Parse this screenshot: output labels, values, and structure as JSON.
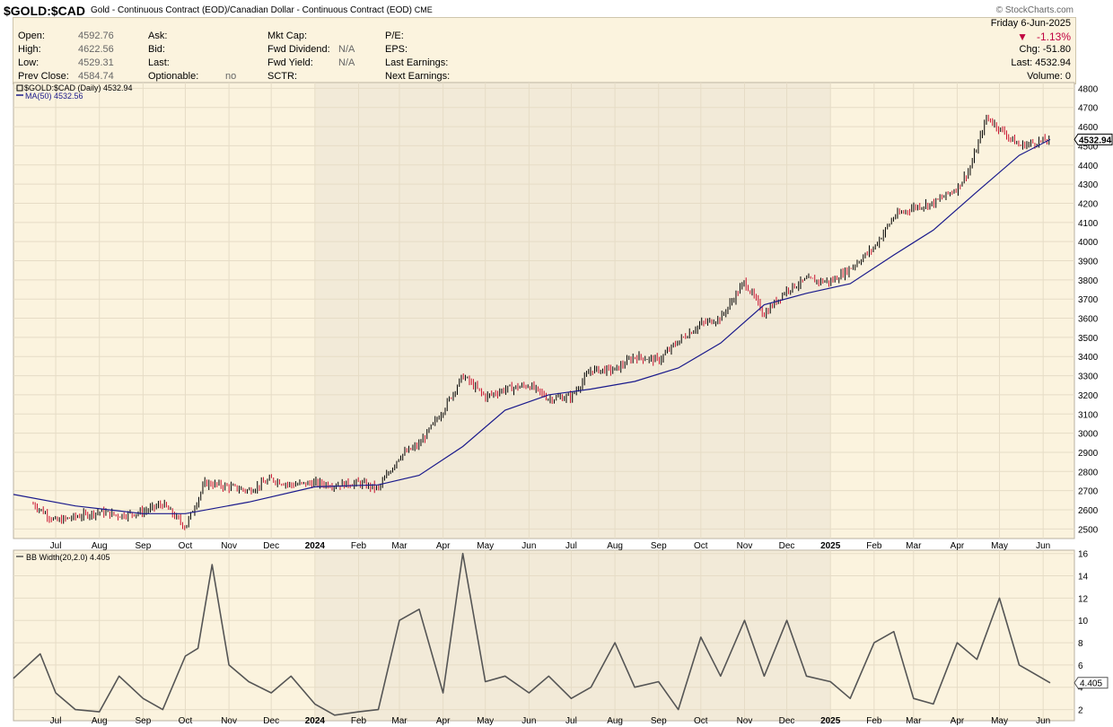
{
  "header": {
    "symbol": "$GOLD:$CAD",
    "description": "Gold - Continuous Contract (EOD)/Canadian Dollar - Continuous Contract (EOD)",
    "exchange": "CME",
    "watermark": "© StockCharts.com"
  },
  "quote": {
    "open_label": "Open:",
    "open_value": "4592.76",
    "high_label": "High:",
    "high_value": "4622.56",
    "low_label": "Low:",
    "low_value": "4529.31",
    "prev_label": "Prev Close:",
    "prev_value": "4584.74",
    "ask_label": "Ask:",
    "bid_label": "Bid:",
    "last_label": "Last:",
    "optionable_label": "Optionable:",
    "optionable_value": "no",
    "mktcap_label": "Mkt Cap:",
    "fwddiv_label": "Fwd Dividend:",
    "fwddiv_value": "N/A",
    "fwdyield_label": "Fwd Yield:",
    "fwdyield_value": "N/A",
    "sctr_label": "SCTR:",
    "pe_label": "P/E:",
    "eps_label": "EPS:",
    "lastearn_label": "Last Earnings:",
    "nextearn_label": "Next Earnings:",
    "date": "Friday  6-Jun-2025",
    "pct_change": "-1.13%",
    "chg": "Chg:  -51.80",
    "last": "Last: 4532.94",
    "volume": "Volume:     0",
    "down_color": "#c00040"
  },
  "chart_data": [
    {
      "type": "candlestick",
      "legend_price": "$GOLD:$CAD (Daily) 4532.94",
      "legend_ma": "MA(50) 4532.56",
      "last_value_label": "4532.94",
      "ylim": [
        2450,
        4830
      ],
      "y_ticks": [
        "2500",
        "2600",
        "2700",
        "2800",
        "2900",
        "3000",
        "3100",
        "3200",
        "3300",
        "3400",
        "3500",
        "3600",
        "3700",
        "3800",
        "3900",
        "4000",
        "4100",
        "4200",
        "4300",
        "4400",
        "4500",
        "4600",
        "4700",
        "4800"
      ],
      "x_labels": [
        "Jul",
        "Aug",
        "Sep",
        "Oct",
        "Nov",
        "Dec",
        "2024",
        "Feb",
        "Mar",
        "Apr",
        "May",
        "Jun",
        "Jul",
        "Aug",
        "Sep",
        "Oct",
        "Nov",
        "Dec",
        "2025",
        "Feb",
        "Mar",
        "Apr",
        "May",
        "Jun"
      ],
      "x_bold": [
        "2024",
        "2025"
      ],
      "price_x": [
        "2023-06-15",
        "2023-07-01",
        "2023-08-01",
        "2023-08-15",
        "2023-09-01",
        "2023-09-15",
        "2023-10-01",
        "2023-10-15",
        "2023-11-01",
        "2023-11-15",
        "2023-12-01",
        "2023-12-15",
        "2024-01-01",
        "2024-01-15",
        "2024-02-01",
        "2024-02-15",
        "2024-03-01",
        "2024-03-15",
        "2024-04-01",
        "2024-04-15",
        "2024-05-01",
        "2024-05-15",
        "2024-06-01",
        "2024-06-15",
        "2024-07-01",
        "2024-07-15",
        "2024-08-01",
        "2024-08-15",
        "2024-09-01",
        "2024-09-15",
        "2024-10-01",
        "2024-10-15",
        "2024-11-01",
        "2024-11-15",
        "2024-12-01",
        "2024-12-15",
        "2025-01-01",
        "2025-01-15",
        "2025-02-01",
        "2025-02-15",
        "2025-03-01",
        "2025-03-15",
        "2025-04-01",
        "2025-04-10",
        "2025-04-22",
        "2025-05-01",
        "2025-05-15",
        "2025-06-06"
      ],
      "price": [
        2630,
        2540,
        2590,
        2570,
        2590,
        2630,
        2510,
        2740,
        2720,
        2700,
        2760,
        2730,
        2740,
        2730,
        2740,
        2710,
        2880,
        2940,
        3120,
        3300,
        3190,
        3230,
        3250,
        3180,
        3190,
        3330,
        3330,
        3400,
        3380,
        3480,
        3570,
        3600,
        3790,
        3620,
        3750,
        3800,
        3790,
        3860,
        3970,
        4130,
        4180,
        4200,
        4280,
        4380,
        4650,
        4590,
        4500,
        4533
      ],
      "ma_x": [
        "2023-06-01",
        "2023-07-15",
        "2023-09-01",
        "2023-10-01",
        "2023-11-15",
        "2024-01-01",
        "2024-02-15",
        "2024-03-15",
        "2024-04-15",
        "2024-05-15",
        "2024-06-15",
        "2024-07-15",
        "2024-08-15",
        "2024-09-15",
        "2024-10-15",
        "2024-11-15",
        "2024-12-15",
        "2025-01-15",
        "2025-02-15",
        "2025-03-15",
        "2025-04-15",
        "2025-05-15",
        "2025-06-06"
      ],
      "ma": [
        2680,
        2620,
        2580,
        2580,
        2640,
        2720,
        2730,
        2780,
        2930,
        3120,
        3200,
        3230,
        3270,
        3340,
        3470,
        3670,
        3730,
        3780,
        3930,
        4060,
        4260,
        4450,
        4533
      ]
    },
    {
      "type": "line",
      "legend": "BB Width(20,2.0) 4.405",
      "last_value_label": "4.405",
      "ylim": [
        1,
        16.3
      ],
      "y_ticks": [
        "2",
        "4",
        "6",
        "8",
        "10",
        "12",
        "14",
        "16"
      ],
      "x": [
        "2023-06-01",
        "2023-06-20",
        "2023-07-01",
        "2023-07-15",
        "2023-08-01",
        "2023-08-15",
        "2023-09-01",
        "2023-09-15",
        "2023-10-01",
        "2023-10-10",
        "2023-10-20",
        "2023-11-01",
        "2023-11-15",
        "2023-12-01",
        "2023-12-15",
        "2024-01-01",
        "2024-01-15",
        "2024-02-01",
        "2024-02-15",
        "2024-03-01",
        "2024-03-15",
        "2024-04-01",
        "2024-04-15",
        "2024-05-01",
        "2024-05-15",
        "2024-06-01",
        "2024-06-15",
        "2024-07-01",
        "2024-07-15",
        "2024-08-01",
        "2024-08-15",
        "2024-09-01",
        "2024-09-15",
        "2024-10-01",
        "2024-10-15",
        "2024-11-01",
        "2024-11-15",
        "2024-12-01",
        "2024-12-15",
        "2025-01-01",
        "2025-01-15",
        "2025-02-01",
        "2025-02-15",
        "2025-03-01",
        "2025-03-15",
        "2025-04-01",
        "2025-04-15",
        "2025-05-01",
        "2025-05-15",
        "2025-06-06"
      ],
      "values": [
        4.8,
        7,
        3.5,
        2,
        1.8,
        5,
        3,
        2,
        6.8,
        7.5,
        15,
        6,
        4.5,
        3.5,
        5,
        2.5,
        1.5,
        1.8,
        2,
        10,
        11,
        3.5,
        16,
        4.5,
        5,
        3.5,
        5,
        3,
        4,
        8,
        4,
        4.5,
        2,
        8.5,
        5,
        10,
        5,
        10,
        5,
        4.5,
        3,
        8,
        9,
        3,
        2.5,
        8,
        6.5,
        12,
        6,
        4.4
      ]
    }
  ]
}
